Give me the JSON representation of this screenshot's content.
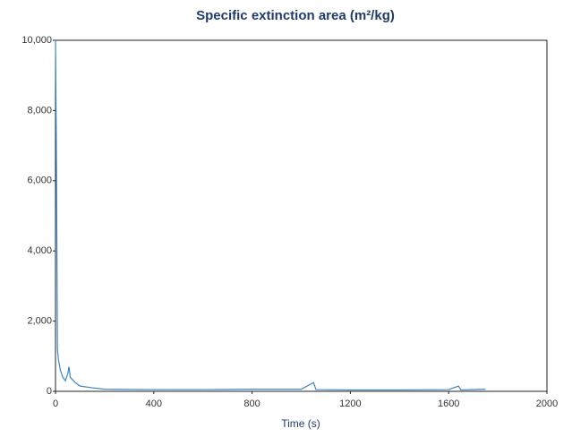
{
  "chart_data": {
    "type": "line",
    "title": "Specific extinction area (m²/kg)",
    "x_label": "Time (s)",
    "x": [
      0,
      3,
      5,
      8,
      12,
      20,
      30,
      40,
      50,
      55,
      60,
      80,
      100,
      150,
      200,
      400,
      600,
      800,
      1000,
      1050,
      1060,
      1200,
      1400,
      1600,
      1640,
      1650,
      1750
    ],
    "values": [
      10000,
      7400,
      5000,
      1200,
      900,
      600,
      400,
      300,
      500,
      700,
      400,
      250,
      150,
      100,
      60,
      50,
      50,
      60,
      60,
      250,
      50,
      40,
      40,
      50,
      150,
      40,
      60
    ],
    "color": "#3a86c8",
    "xlim": [
      0,
      2000
    ],
    "xticks": [
      0,
      400,
      800,
      1200,
      1600,
      2000
    ],
    "ylim": [
      0,
      10000
    ],
    "yticks": [
      0,
      {
        "value": 2000,
        "label": "2,000"
      },
      {
        "value": 4000,
        "label": "4,000"
      },
      {
        "value": 6000,
        "label": "6,000"
      },
      {
        "value": 8000,
        "label": "8,000"
      },
      {
        "value": 10000,
        "label": "10,000"
      }
    ]
  }
}
